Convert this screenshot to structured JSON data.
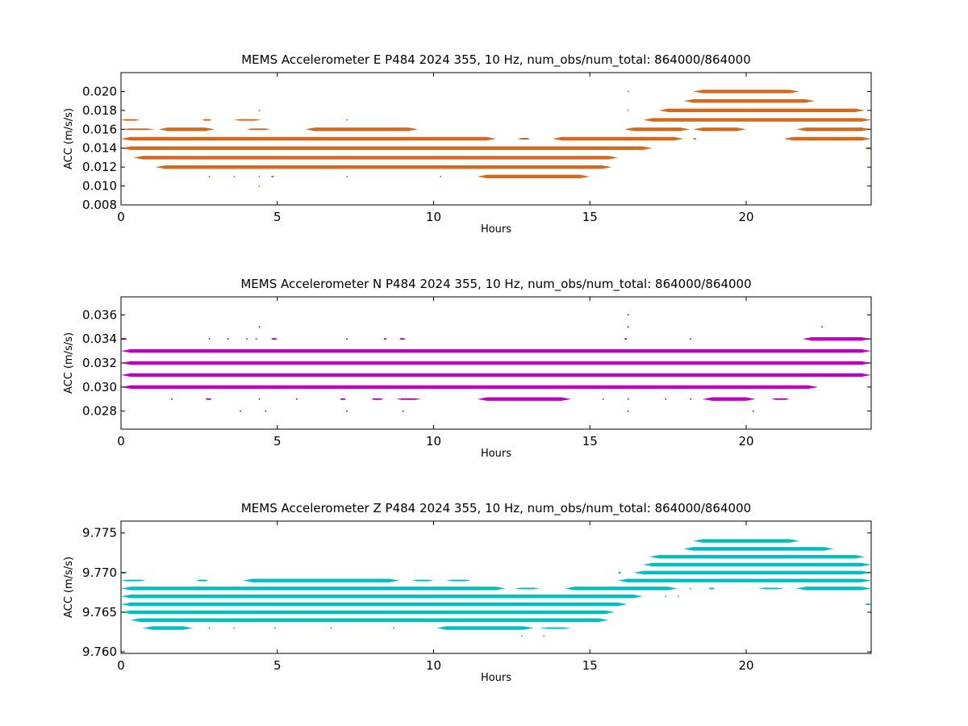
{
  "chart_data": [
    {
      "type": "scatter",
      "title": "MEMS Accelerometer E P484 2024 355, 10 Hz, num_obs/num_total: 864000/864000",
      "xlabel": "Hours",
      "ylabel": "ACC (m/s/s)",
      "xlim": [
        0,
        24
      ],
      "ylim": [
        0.008,
        0.022
      ],
      "xticks": [
        0,
        5,
        10,
        15,
        20
      ],
      "xtick_labels": [
        "0",
        "5",
        "10",
        "15",
        "20"
      ],
      "yticks": [
        0.008,
        0.01,
        0.012,
        0.014,
        0.016,
        0.018,
        0.02
      ],
      "ytick_labels": [
        "0.008",
        "0.010",
        "0.012",
        "0.014",
        "0.016",
        "0.018",
        "0.020"
      ],
      "grid": false,
      "color": "#d2691e",
      "series": [
        {
          "bands": [
            {
              "y": 0.01,
              "segments": [
                [
                  4.4,
                  4.45
                ]
              ]
            },
            {
              "y": 0.011,
              "segments": [
                [
                  2.8,
                  2.85
                ],
                [
                  3.6,
                  3.65
                ],
                [
                  4.4,
                  4.45
                ],
                [
                  4.8,
                  4.9
                ],
                [
                  7.2,
                  7.25
                ],
                [
                  10.2,
                  10.25
                ],
                [
                  11.4,
                  15.0
                ]
              ]
            },
            {
              "y": 0.012,
              "segments": [
                [
                  1.1,
                  15.7
                ]
              ]
            },
            {
              "y": 0.013,
              "segments": [
                [
                  0.4,
                  15.9
                ]
              ]
            },
            {
              "y": 0.014,
              "segments": [
                [
                  0.0,
                  17.0
                ],
                [
                  23.8,
                  24.0
                ]
              ]
            },
            {
              "y": 0.015,
              "segments": [
                [
                  0.0,
                  12.0
                ],
                [
                  12.7,
                  13.1
                ],
                [
                  13.8,
                  18.0
                ],
                [
                  18.3,
                  18.4
                ],
                [
                  21.2,
                  24.0
                ]
              ]
            },
            {
              "y": 0.016,
              "segments": [
                [
                  0.0,
                  1.1
                ],
                [
                  1.2,
                  3.0
                ],
                [
                  4.0,
                  4.8
                ],
                [
                  5.9,
                  9.5
                ],
                [
                  16.1,
                  18.2
                ],
                [
                  18.3,
                  20.0
                ],
                [
                  21.6,
                  24.0
                ]
              ]
            },
            {
              "y": 0.017,
              "segments": [
                [
                  0.0,
                  0.6
                ],
                [
                  2.6,
                  2.9
                ],
                [
                  3.6,
                  4.5
                ],
                [
                  7.2,
                  7.25
                ],
                [
                  16.7,
                  24.0
                ]
              ]
            },
            {
              "y": 0.018,
              "segments": [
                [
                  4.4,
                  4.45
                ],
                [
                  16.2,
                  16.25
                ],
                [
                  17.2,
                  23.8
                ]
              ]
            },
            {
              "y": 0.019,
              "segments": [
                [
                  18.0,
                  22.2
                ]
              ]
            },
            {
              "y": 0.02,
              "segments": [
                [
                  16.2,
                  16.25
                ],
                [
                  18.3,
                  21.7
                ]
              ]
            }
          ]
        }
      ]
    },
    {
      "type": "scatter",
      "title": "MEMS Accelerometer N P484 2024 355, 10 Hz, num_obs/num_total: 864000/864000",
      "xlabel": "Hours",
      "ylabel": "ACC (m/s/s)",
      "xlim": [
        0,
        24
      ],
      "ylim": [
        0.0265,
        0.0375
      ],
      "xticks": [
        0,
        5,
        10,
        15,
        20
      ],
      "xtick_labels": [
        "0",
        "5",
        "10",
        "15",
        "20"
      ],
      "yticks": [
        0.028,
        0.03,
        0.032,
        0.034,
        0.036
      ],
      "ytick_labels": [
        "0.028",
        "0.030",
        "0.032",
        "0.034",
        "0.036"
      ],
      "grid": false,
      "color": "#bf00bf",
      "series": [
        {
          "bands": [
            {
              "y": 0.028,
              "segments": [
                [
                  3.8,
                  3.85
                ],
                [
                  4.6,
                  4.65
                ],
                [
                  7.2,
                  7.25
                ],
                [
                  9.0,
                  9.05
                ],
                [
                  16.2,
                  16.25
                ],
                [
                  20.2,
                  20.25
                ]
              ]
            },
            {
              "y": 0.029,
              "segments": [
                [
                  1.6,
                  1.65
                ],
                [
                  2.7,
                  2.9
                ],
                [
                  4.4,
                  4.45
                ],
                [
                  5.6,
                  5.65
                ],
                [
                  7.0,
                  7.2
                ],
                [
                  8.0,
                  8.4
                ],
                [
                  8.8,
                  9.6
                ],
                [
                  11.4,
                  14.4
                ],
                [
                  15.4,
                  15.45
                ],
                [
                  16.2,
                  16.25
                ],
                [
                  17.4,
                  17.45
                ],
                [
                  18.2,
                  18.25
                ],
                [
                  18.6,
                  20.3
                ],
                [
                  20.8,
                  21.4
                ]
              ]
            },
            {
              "y": 0.03,
              "segments": [
                [
                  0.0,
                  22.3
                ]
              ]
            },
            {
              "y": 0.031,
              "segments": [
                [
                  0.0,
                  24.0
                ]
              ]
            },
            {
              "y": 0.032,
              "segments": [
                [
                  0.0,
                  24.0
                ]
              ]
            },
            {
              "y": 0.033,
              "segments": [
                [
                  0.0,
                  24.0
                ]
              ]
            },
            {
              "y": 0.034,
              "segments": [
                [
                  0.0,
                  0.2
                ],
                [
                  2.8,
                  2.85
                ],
                [
                  3.4,
                  3.45
                ],
                [
                  4.0,
                  4.05
                ],
                [
                  4.3,
                  4.35
                ],
                [
                  4.8,
                  5.0
                ],
                [
                  7.2,
                  7.25
                ],
                [
                  8.4,
                  8.5
                ],
                [
                  8.9,
                  9.1
                ],
                [
                  16.1,
                  16.2
                ],
                [
                  18.2,
                  18.25
                ],
                [
                  21.8,
                  24.0
                ]
              ]
            },
            {
              "y": 0.035,
              "segments": [
                [
                  4.4,
                  4.45
                ],
                [
                  16.2,
                  16.25
                ],
                [
                  22.4,
                  22.45
                ]
              ]
            },
            {
              "y": 0.036,
              "segments": [
                [
                  16.2,
                  16.25
                ]
              ]
            }
          ]
        }
      ]
    },
    {
      "type": "scatter",
      "title": "MEMS Accelerometer Z P484 2024 355, 10 Hz, num_obs/num_total: 864000/864000",
      "xlabel": "Hours",
      "ylabel": "ACC (m/s/s)",
      "xlim": [
        0,
        24
      ],
      "ylim": [
        9.7598,
        9.7765
      ],
      "xticks": [
        0,
        5,
        10,
        15,
        20
      ],
      "xtick_labels": [
        "0",
        "5",
        "10",
        "15",
        "20"
      ],
      "yticks": [
        9.76,
        9.765,
        9.77,
        9.775
      ],
      "ytick_labels": [
        "9.760",
        "9.765",
        "9.770",
        "9.775"
      ],
      "grid": false,
      "color": "#00bfbf",
      "series": [
        {
          "bands": [
            {
              "y": 9.762,
              "segments": [
                [
                  12.8,
                  12.85
                ],
                [
                  13.5,
                  13.55
                ]
              ]
            },
            {
              "y": 9.763,
              "segments": [
                [
                  0.7,
                  2.3
                ],
                [
                  2.8,
                  2.85
                ],
                [
                  3.6,
                  3.65
                ],
                [
                  4.9,
                  4.95
                ],
                [
                  6.7,
                  6.75
                ],
                [
                  8.7,
                  8.75
                ],
                [
                  10.1,
                  13.2
                ],
                [
                  13.4,
                  14.4
                ]
              ]
            },
            {
              "y": 9.764,
              "segments": [
                [
                  0.3,
                  15.6
                ]
              ]
            },
            {
              "y": 9.765,
              "segments": [
                [
                  0.0,
                  15.8
                ]
              ]
            },
            {
              "y": 9.766,
              "segments": [
                [
                  0.0,
                  16.2
                ],
                [
                  23.8,
                  24.0
                ]
              ]
            },
            {
              "y": 9.767,
              "segments": [
                [
                  0.0,
                  16.7
                ],
                [
                  17.4,
                  17.45
                ],
                [
                  17.8,
                  17.85
                ]
              ]
            },
            {
              "y": 9.768,
              "segments": [
                [
                  0.0,
                  12.3
                ],
                [
                  12.6,
                  13.4
                ],
                [
                  14.2,
                  17.8
                ],
                [
                  18.2,
                  18.25
                ],
                [
                  18.8,
                  19.0
                ],
                [
                  20.4,
                  21.2
                ],
                [
                  21.6,
                  24.0
                ]
              ]
            },
            {
              "y": 9.769,
              "segments": [
                [
                  0.0,
                  0.8
                ],
                [
                  2.4,
                  2.8
                ],
                [
                  3.9,
                  8.9
                ],
                [
                  9.3,
                  10.0
                ],
                [
                  10.4,
                  11.2
                ],
                [
                  15.9,
                  24.0
                ]
              ]
            },
            {
              "y": 9.77,
              "segments": [
                [
                  0.0,
                  0.2
                ],
                [
                  15.9,
                  16.0
                ],
                [
                  16.4,
                  24.0
                ]
              ]
            },
            {
              "y": 9.771,
              "segments": [
                [
                  16.7,
                  24.0
                ]
              ]
            },
            {
              "y": 9.772,
              "segments": [
                [
                  16.9,
                  23.8
                ]
              ]
            },
            {
              "y": 9.773,
              "segments": [
                [
                  18.0,
                  22.8
                ]
              ]
            },
            {
              "y": 9.774,
              "segments": [
                [
                  18.3,
                  21.7
                ]
              ]
            }
          ]
        }
      ]
    }
  ]
}
